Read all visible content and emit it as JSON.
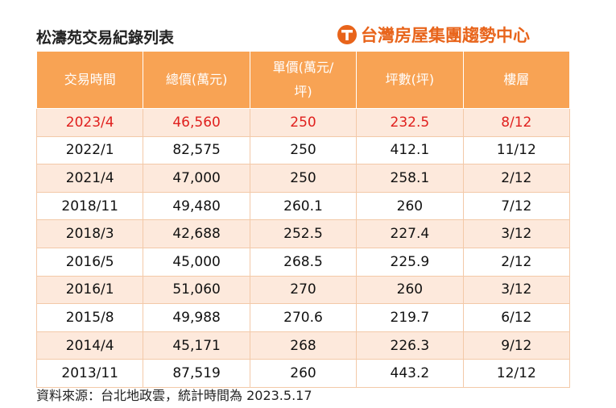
{
  "header": {
    "title": "松濤苑交易紀錄列表",
    "logo": "台灣房屋集團趨勢中心"
  },
  "table": {
    "columns": [
      "交易時間",
      "總價(萬元)",
      "單價(萬元/坪)",
      "坪數(坪)",
      "樓層"
    ],
    "rows": [
      [
        "2023/4",
        "46,560",
        "250",
        "232.5",
        "8/12"
      ],
      [
        "2022/1",
        "82,575",
        "250",
        "412.1",
        "11/12"
      ],
      [
        "2021/4",
        "47,000",
        "250",
        "258.1",
        "2/12"
      ],
      [
        "2018/11",
        "49,480",
        "260.1",
        "260",
        "7/12"
      ],
      [
        "2018/3",
        "42,688",
        "252.5",
        "227.4",
        "3/12"
      ],
      [
        "2016/5",
        "45,000",
        "268.5",
        "225.9",
        "2/12"
      ],
      [
        "2016/1",
        "51,060",
        "270",
        "260",
        "3/12"
      ],
      [
        "2015/8",
        "49,988",
        "270.6",
        "219.7",
        "6/12"
      ],
      [
        "2014/4",
        "45,171",
        "268",
        "226.3",
        "9/12"
      ],
      [
        "2013/11",
        "87,519",
        "260",
        "443.2",
        "12/12"
      ]
    ]
  },
  "footer": {
    "source": "資料來源：台北地政雲，統計時間為 2023.5.17"
  }
}
